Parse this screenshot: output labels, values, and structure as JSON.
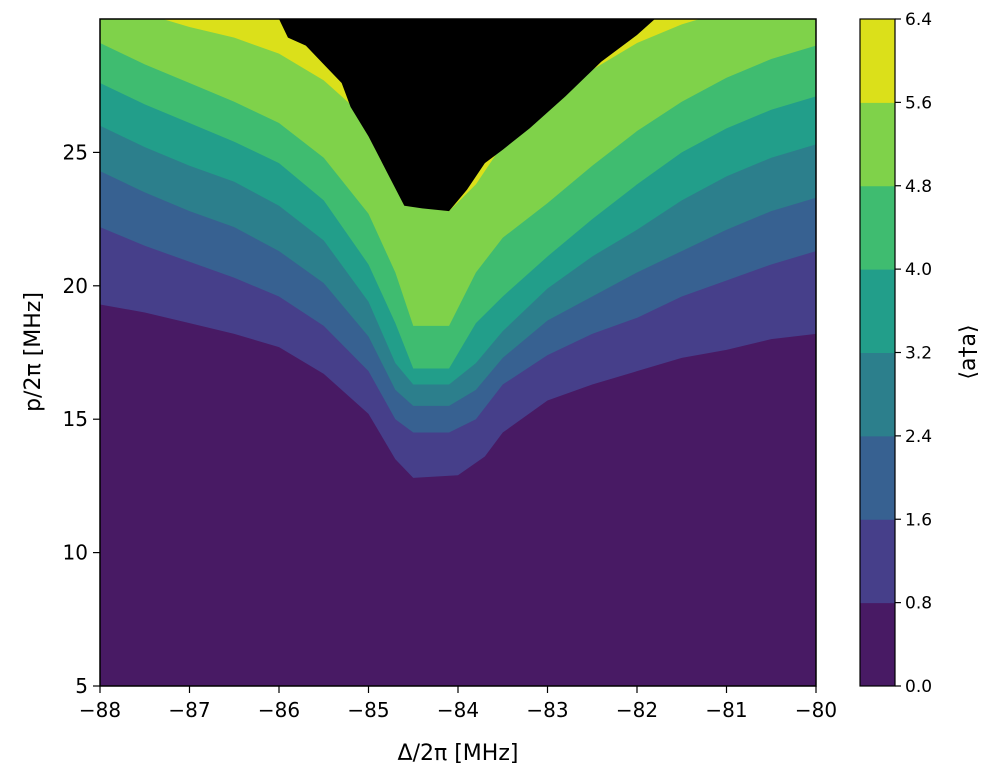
{
  "chart_data": {
    "type": "contourf",
    "xlabel": "Δ/2π [MHz]",
    "ylabel": "p/2π [MHz]",
    "colorbar_label": "⟨a†a⟩",
    "xlim": [
      -88,
      -80
    ],
    "ylim": [
      5,
      30
    ],
    "x_ticks": [
      -88,
      -87,
      -86,
      -85,
      -84,
      -83,
      -82,
      -81,
      -80
    ],
    "x_tick_labels": [
      "−88",
      "−87",
      "−86",
      "−85",
      "−84",
      "−83",
      "−82",
      "−81",
      "−80"
    ],
    "y_ticks": [
      5,
      10,
      15,
      20,
      25
    ],
    "y_tick_labels": [
      "5",
      "10",
      "15",
      "20",
      "25"
    ],
    "colorbar": {
      "levels": [
        0.0,
        0.8,
        1.6,
        2.4,
        3.2,
        4.0,
        4.8,
        5.6,
        6.4
      ],
      "tick_labels": [
        "0.0",
        "0.8",
        "1.6",
        "2.4",
        "3.2",
        "4.0",
        "4.8",
        "5.6",
        "6.4"
      ],
      "colors": [
        "#440154",
        "#46327e",
        "#365c8d",
        "#277f8e",
        "#1fa187",
        "#4ac16d",
        "#a0da39",
        "#fde725"
      ],
      "display_colors": [
        "#481a64",
        "#463f8a",
        "#376191",
        "#2c7f8c",
        "#229e8a",
        "#3fbc70",
        "#7fd24a",
        "#dbe01a"
      ]
    },
    "contour_boundaries": [
      {
        "level": 0.8,
        "points": [
          [
            -88,
            19.3
          ],
          [
            -87.5,
            19.0
          ],
          [
            -87,
            18.6
          ],
          [
            -86.5,
            18.2
          ],
          [
            -86,
            17.7
          ],
          [
            -85.5,
            16.7
          ],
          [
            -85,
            15.2
          ],
          [
            -84.7,
            13.5
          ],
          [
            -84.5,
            12.8
          ],
          [
            -84,
            12.9
          ],
          [
            -83.7,
            13.6
          ],
          [
            -83.5,
            14.5
          ],
          [
            -83,
            15.7
          ],
          [
            -82.5,
            16.3
          ],
          [
            -82,
            16.8
          ],
          [
            -81.5,
            17.3
          ],
          [
            -81,
            17.6
          ],
          [
            -80.5,
            18.0
          ],
          [
            -80,
            18.2
          ]
        ]
      },
      {
        "level": 1.6,
        "points": [
          [
            -88,
            22.2
          ],
          [
            -87.5,
            21.5
          ],
          [
            -87,
            20.9
          ],
          [
            -86.5,
            20.3
          ],
          [
            -86,
            19.6
          ],
          [
            -85.5,
            18.5
          ],
          [
            -85,
            16.8
          ],
          [
            -84.7,
            15.0
          ],
          [
            -84.5,
            14.5
          ],
          [
            -84.1,
            14.5
          ],
          [
            -83.8,
            15.0
          ],
          [
            -83.5,
            16.3
          ],
          [
            -83,
            17.4
          ],
          [
            -82.5,
            18.2
          ],
          [
            -82,
            18.8
          ],
          [
            -81.5,
            19.6
          ],
          [
            -81,
            20.2
          ],
          [
            -80.5,
            20.8
          ],
          [
            -80,
            21.3
          ]
        ]
      },
      {
        "level": 2.4,
        "points": [
          [
            -88,
            24.3
          ],
          [
            -87.5,
            23.5
          ],
          [
            -87,
            22.8
          ],
          [
            -86.5,
            22.2
          ],
          [
            -86,
            21.3
          ],
          [
            -85.5,
            20.1
          ],
          [
            -85,
            18.1
          ],
          [
            -84.7,
            16.1
          ],
          [
            -84.5,
            15.5
          ],
          [
            -84.1,
            15.5
          ],
          [
            -83.8,
            16.1
          ],
          [
            -83.5,
            17.3
          ],
          [
            -83,
            18.7
          ],
          [
            -82.5,
            19.6
          ],
          [
            -82,
            20.5
          ],
          [
            -81.5,
            21.3
          ],
          [
            -81,
            22.1
          ],
          [
            -80.5,
            22.8
          ],
          [
            -80,
            23.3
          ]
        ]
      },
      {
        "level": 3.2,
        "points": [
          [
            -88,
            26.0
          ],
          [
            -87.5,
            25.2
          ],
          [
            -87,
            24.5
          ],
          [
            -86.5,
            23.9
          ],
          [
            -86,
            23.0
          ],
          [
            -85.5,
            21.7
          ],
          [
            -85,
            19.4
          ],
          [
            -84.7,
            17.1
          ],
          [
            -84.5,
            16.3
          ],
          [
            -84.1,
            16.3
          ],
          [
            -83.8,
            17.1
          ],
          [
            -83.5,
            18.3
          ],
          [
            -83,
            19.9
          ],
          [
            -82.5,
            21.1
          ],
          [
            -82,
            22.1
          ],
          [
            -81.5,
            23.2
          ],
          [
            -81,
            24.1
          ],
          [
            -80.5,
            24.8
          ],
          [
            -80,
            25.3
          ]
        ]
      },
      {
        "level": 4.0,
        "points": [
          [
            -88,
            27.6
          ],
          [
            -87.5,
            26.8
          ],
          [
            -87,
            26.1
          ],
          [
            -86.5,
            25.4
          ],
          [
            -86,
            24.6
          ],
          [
            -85.5,
            23.2
          ],
          [
            -85,
            20.8
          ],
          [
            -84.7,
            18.6
          ],
          [
            -84.5,
            16.9
          ],
          [
            -84.1,
            16.9
          ],
          [
            -83.8,
            18.6
          ],
          [
            -83.5,
            19.6
          ],
          [
            -83,
            21.1
          ],
          [
            -82.5,
            22.5
          ],
          [
            -82,
            23.8
          ],
          [
            -81.5,
            25.0
          ],
          [
            -81,
            25.9
          ],
          [
            -80.5,
            26.6
          ],
          [
            -80,
            27.1
          ]
        ]
      },
      {
        "level": 4.8,
        "points": [
          [
            -88,
            29.1
          ],
          [
            -87.5,
            28.3
          ],
          [
            -87,
            27.6
          ],
          [
            -86.5,
            26.9
          ],
          [
            -86,
            26.1
          ],
          [
            -85.5,
            24.8
          ],
          [
            -85,
            22.7
          ],
          [
            -84.7,
            20.5
          ],
          [
            -84.5,
            18.5
          ],
          [
            -84.1,
            18.5
          ],
          [
            -83.8,
            20.5
          ],
          [
            -83.5,
            21.8
          ],
          [
            -83,
            23.1
          ],
          [
            -82.5,
            24.5
          ],
          [
            -82,
            25.8
          ],
          [
            -81.5,
            26.9
          ],
          [
            -81,
            27.8
          ],
          [
            -80.5,
            28.5
          ],
          [
            -80,
            29.0
          ]
        ]
      },
      {
        "level": 5.6,
        "points": [
          [
            -88,
            30.0
          ],
          [
            -87.3,
            30.0
          ],
          [
            -87,
            29.7
          ],
          [
            -86.5,
            29.3
          ],
          [
            -86,
            28.7
          ],
          [
            -85.5,
            27.7
          ],
          [
            -85,
            26.2
          ],
          [
            -84.8,
            24.5
          ],
          [
            -84.6,
            23.0
          ],
          [
            -84.1,
            22.8
          ],
          [
            -83.8,
            23.8
          ],
          [
            -83.5,
            25.3
          ],
          [
            -83,
            26.8
          ],
          [
            -82.5,
            28.1
          ],
          [
            -82,
            29.1
          ],
          [
            -81.5,
            29.8
          ],
          [
            -81.3,
            30.0
          ],
          [
            -80,
            30.0
          ]
        ]
      },
      {
        "level": 6.4,
        "points": [
          [
            -86.0,
            30.0
          ],
          [
            -85.9,
            29.3
          ],
          [
            -85.7,
            29.0
          ],
          [
            -85.5,
            28.3
          ],
          [
            -85.3,
            27.6
          ],
          [
            -85.2,
            26.7
          ],
          [
            -85.0,
            25.6
          ],
          [
            -84.8,
            24.3
          ],
          [
            -84.6,
            23.0
          ],
          [
            -84.4,
            22.9
          ],
          [
            -84.1,
            22.8
          ],
          [
            -83.9,
            23.6
          ],
          [
            -83.7,
            24.6
          ],
          [
            -83.5,
            25.1
          ],
          [
            -83.2,
            25.9
          ],
          [
            -82.8,
            27.1
          ],
          [
            -82.4,
            28.4
          ],
          [
            -82.0,
            29.4
          ],
          [
            -81.8,
            30.0
          ]
        ]
      }
    ]
  }
}
